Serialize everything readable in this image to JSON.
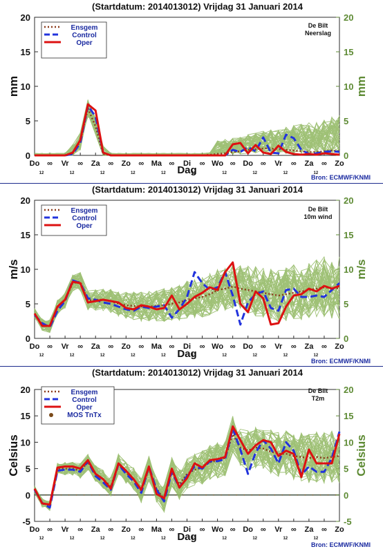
{
  "chart_data": [
    {
      "type": "line",
      "title": "(Startdatum: 2014013012)   Vrijdag   31 Januari   2014",
      "location": "De Bilt",
      "variable": "Neerslag",
      "ylabel": "mm",
      "xlabel": "Dag",
      "source": "Bron: ECMWF/KNMI",
      "ylim": [
        0,
        20
      ],
      "yticks": [
        0,
        5,
        10,
        15,
        20
      ],
      "xlim": [
        0,
        20
      ],
      "xtick_labels": [
        "Do",
        "∞",
        "Vr",
        "∞",
        "Za",
        "∞",
        "Zo",
        "∞",
        "Ma",
        "∞",
        "Di",
        "∞",
        "Wo",
        "∞",
        "Do",
        "∞",
        "Vr",
        "∞",
        "Za",
        "∞",
        "Zo"
      ],
      "xsub_labels": [
        "12",
        "12",
        "12",
        "12",
        "12",
        "12",
        "12",
        "12",
        "12",
        "12"
      ],
      "legend": [
        "Ensgem",
        "Control",
        "Oper"
      ],
      "x": [
        0,
        0.5,
        1,
        1.5,
        2,
        2.5,
        3,
        3.5,
        4,
        4.5,
        5,
        5.5,
        6,
        6.5,
        7,
        7.5,
        8,
        8.5,
        9,
        9.5,
        10,
        10.5,
        11,
        11.5,
        12,
        12.5,
        13,
        13.5,
        14,
        14.5,
        15,
        15.5,
        16,
        16.5,
        17,
        17.5,
        18,
        18.5,
        19,
        19.5,
        20
      ],
      "series": [
        {
          "name": "Ensgem",
          "style": "dotted",
          "color": "#8b3a1a",
          "values": [
            0,
            0,
            0,
            0,
            0,
            0.3,
            2.0,
            6.8,
            4.2,
            0.2,
            0,
            0,
            0,
            0,
            0,
            0,
            0,
            0,
            0,
            0,
            0,
            0,
            0,
            0.1,
            0.2,
            0.3,
            0.5,
            0.6,
            0.8,
            0.9,
            1.0,
            1.0,
            0.9,
            0.8,
            0.7,
            0.6,
            0.5,
            0.5,
            0.6,
            0.7,
            0.6
          ]
        },
        {
          "name": "Control",
          "style": "dashed",
          "color": "#2233dd",
          "values": [
            0,
            0,
            0,
            0,
            0,
            0.2,
            1.8,
            7.2,
            5.6,
            0.4,
            0,
            0,
            0,
            0,
            0,
            0,
            0,
            0,
            0,
            0,
            0,
            0,
            0,
            0,
            0,
            0,
            0.8,
            0.5,
            1.2,
            0.6,
            2.6,
            0.4,
            0.3,
            3.0,
            2.5,
            0.8,
            0.2,
            0.3,
            0.5,
            0.6,
            0.5
          ]
        },
        {
          "name": "Oper",
          "style": "solid",
          "color": "#dd1111",
          "values": [
            0,
            0,
            0,
            0,
            0,
            0.4,
            2.2,
            7.4,
            6.5,
            0.4,
            0,
            0,
            0,
            0,
            0,
            0,
            0,
            0,
            0,
            0,
            0,
            0,
            0,
            0,
            0,
            0,
            1.6,
            1.8,
            0.3,
            1.5,
            0.4,
            0.2,
            1.4,
            0.5,
            0.2,
            0.1,
            0.2,
            0.1,
            0.3,
            0.2,
            0.1
          ]
        }
      ]
    },
    {
      "type": "line",
      "title": "(Startdatum: 2014013012)   Vrijdag   31 Januari   2014",
      "location": "De Bilt",
      "variable": "10m wind",
      "ylabel": "m/s",
      "xlabel": "Dag",
      "source": "Bron: ECMWF/KNMI",
      "ylim": [
        0,
        20
      ],
      "yticks": [
        0,
        5,
        10,
        15,
        20
      ],
      "xlim": [
        0,
        20
      ],
      "xtick_labels": [
        "Do",
        "∞",
        "Vr",
        "∞",
        "Za",
        "∞",
        "Zo",
        "∞",
        "Ma",
        "∞",
        "Di",
        "∞",
        "Wo",
        "∞",
        "Do",
        "∞",
        "Vr",
        "∞",
        "Za",
        "∞",
        "Zo"
      ],
      "xsub_labels": [
        "12",
        "12",
        "12",
        "12",
        "12",
        "12",
        "12",
        "12",
        "12",
        "12"
      ],
      "legend": [
        "Ensgem",
        "Control",
        "Oper"
      ],
      "x": [
        0,
        0.5,
        1,
        1.5,
        2,
        2.5,
        3,
        3.5,
        4,
        4.5,
        5,
        5.5,
        6,
        6.5,
        7,
        7.5,
        8,
        8.5,
        9,
        9.5,
        10,
        10.5,
        11,
        11.5,
        12,
        12.5,
        13,
        13.5,
        14,
        14.5,
        15,
        15.5,
        16,
        16.5,
        17,
        17.5,
        18,
        18.5,
        19,
        19.5,
        20
      ],
      "series": [
        {
          "name": "Ensgem",
          "style": "dotted",
          "color": "#8b3a1a",
          "values": [
            3.6,
            2.0,
            1.8,
            4.5,
            5.5,
            8.0,
            8.2,
            5.5,
            5.6,
            5.6,
            5.4,
            5.0,
            4.8,
            4.7,
            4.6,
            4.6,
            4.7,
            4.8,
            5.0,
            5.2,
            5.6,
            5.8,
            6.0,
            6.4,
            7.0,
            7.2,
            7.5,
            7.2,
            7.0,
            6.8,
            6.6,
            6.4,
            6.2,
            6.4,
            6.6,
            6.8,
            7.0,
            7.2,
            7.4,
            7.3,
            7.2
          ]
        },
        {
          "name": "Control",
          "style": "dashed",
          "color": "#2233dd",
          "values": [
            3.4,
            2.2,
            1.6,
            4.0,
            5.4,
            8.4,
            8.0,
            5.8,
            5.6,
            5.2,
            5.0,
            4.6,
            4.2,
            4.0,
            4.6,
            4.4,
            4.6,
            4.8,
            3.0,
            4.2,
            6.0,
            9.6,
            8.0,
            7.0,
            7.4,
            9.6,
            6.2,
            2.0,
            5.2,
            6.4,
            6.8,
            4.4,
            4.0,
            7.0,
            7.2,
            6.0,
            6.0,
            6.2,
            6.0,
            7.0,
            8.0
          ]
        },
        {
          "name": "Oper",
          "style": "solid",
          "color": "#dd1111",
          "values": [
            3.6,
            1.8,
            1.8,
            4.6,
            5.6,
            8.2,
            8.0,
            5.2,
            5.4,
            5.6,
            5.4,
            5.2,
            4.4,
            4.2,
            4.8,
            4.6,
            4.2,
            4.4,
            6.2,
            4.2,
            5.0,
            6.0,
            6.6,
            7.4,
            7.0,
            9.6,
            11.0,
            5.0,
            3.8,
            6.8,
            5.8,
            2.0,
            2.2,
            4.6,
            6.2,
            6.4,
            7.2,
            6.8,
            7.6,
            7.2,
            7.6
          ]
        }
      ]
    },
    {
      "type": "line",
      "title": "(Startdatum: 2014013012)   Vrijdag   31 Januari   2014",
      "location": "De Bilt",
      "variable": "T2m",
      "ylabel": "Celsius",
      "xlabel": "Dag",
      "source": "Bron: ECMWF/KNMI",
      "ylim": [
        -5,
        20
      ],
      "yticks": [
        -5,
        0,
        5,
        10,
        15,
        20
      ],
      "xlim": [
        0,
        20
      ],
      "xtick_labels": [
        "Do",
        "∞",
        "Vr",
        "∞",
        "Za",
        "∞",
        "Zo",
        "∞",
        "Ma",
        "∞",
        "Di",
        "∞",
        "Wo",
        "∞",
        "Do",
        "∞",
        "Vr",
        "∞",
        "Za",
        "∞",
        "Zo"
      ],
      "xsub_labels": [
        "12",
        "12",
        "12",
        "12",
        "12",
        "12",
        "12",
        "12",
        "12",
        "12"
      ],
      "legend": [
        "Ensgem",
        "Control",
        "Oper",
        "MOS TnTx"
      ],
      "x": [
        0,
        0.5,
        1,
        1.5,
        2,
        2.5,
        3,
        3.5,
        4,
        4.5,
        5,
        5.5,
        6,
        6.5,
        7,
        7.5,
        8,
        8.5,
        9,
        9.5,
        10,
        10.5,
        11,
        11.5,
        12,
        12.5,
        13,
        13.5,
        14,
        14.5,
        15,
        15.5,
        16,
        16.5,
        17,
        17.5,
        18,
        18.5,
        19,
        19.5,
        20
      ],
      "series": [
        {
          "name": "Ensgem",
          "style": "dotted",
          "color": "#8b3a1a",
          "values": [
            1.0,
            -1.5,
            -2.0,
            5.0,
            5.0,
            5.0,
            4.6,
            6.2,
            4.0,
            3.0,
            1.6,
            5.8,
            4.2,
            3.0,
            0.8,
            5.0,
            1.2,
            -0.8,
            4.4,
            2.0,
            4.0,
            4.8,
            5.2,
            6.2,
            6.6,
            7.0,
            11.5,
            9.0,
            8.4,
            9.0,
            8.8,
            8.2,
            7.8,
            7.8,
            7.4,
            7.2,
            7.0,
            7.2,
            7.0,
            7.2,
            7.4
          ]
        },
        {
          "name": "Control",
          "style": "dashed",
          "color": "#2233dd",
          "values": [
            1.0,
            -1.5,
            -2.4,
            4.6,
            4.8,
            4.8,
            4.4,
            6.4,
            3.6,
            2.4,
            1.0,
            5.8,
            4.0,
            2.6,
            0.4,
            5.4,
            1.0,
            -1.2,
            4.4,
            1.4,
            3.6,
            5.4,
            5.0,
            6.4,
            6.4,
            6.8,
            12.6,
            8.6,
            4.0,
            8.0,
            10.4,
            8.8,
            6.0,
            10.0,
            8.4,
            3.8,
            5.4,
            4.4,
            4.4,
            7.0,
            12.0
          ]
        },
        {
          "name": "Oper",
          "style": "solid",
          "color": "#dd1111",
          "values": [
            1.2,
            -1.6,
            -1.8,
            5.2,
            5.4,
            5.4,
            5.0,
            6.6,
            4.0,
            3.0,
            1.2,
            6.0,
            4.6,
            3.0,
            1.0,
            5.4,
            0.2,
            -0.6,
            5.0,
            1.4,
            3.2,
            6.0,
            5.2,
            6.6,
            6.8,
            7.2,
            13.0,
            10.4,
            7.8,
            9.4,
            10.4,
            10.0,
            7.4,
            8.4,
            7.8,
            3.4,
            8.6,
            6.0,
            6.0,
            6.0,
            11.6
          ]
        }
      ]
    }
  ]
}
